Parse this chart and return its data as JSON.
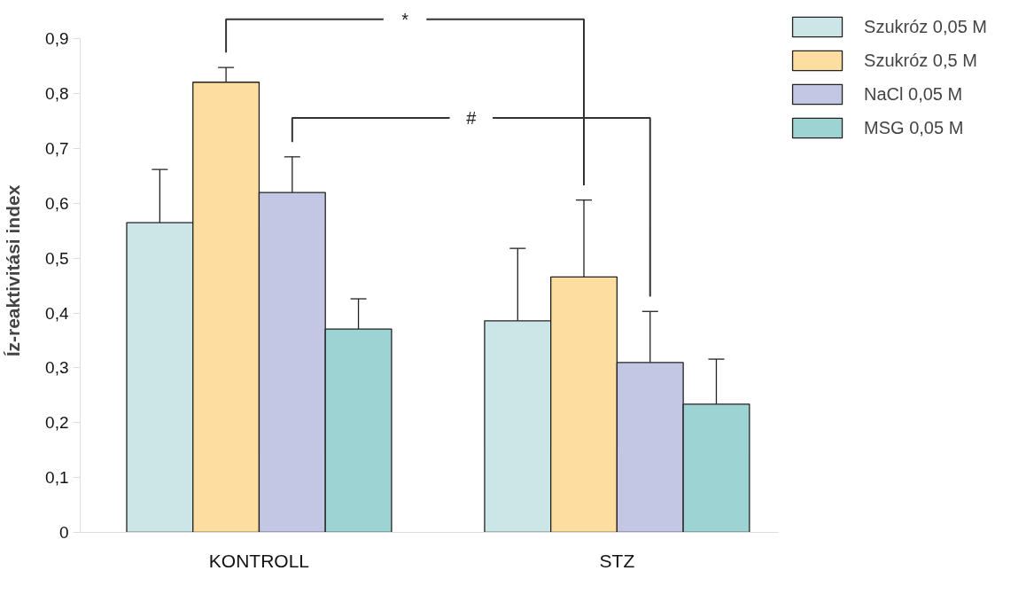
{
  "chart_data": {
    "type": "bar",
    "ylabel": "Íz-reaktivitási index",
    "categories": [
      "KONTROLL",
      "STZ"
    ],
    "series": [
      {
        "name": "Szukróz 0,05 M",
        "color": "#cce5e6",
        "values": [
          0.565,
          0.386
        ],
        "errors": [
          [
            0.565,
            0.662
          ],
          [
            0.386,
            0.518
          ]
        ]
      },
      {
        "name": "Szukróz 0,5 M",
        "color": "#fddda0",
        "values": [
          0.821,
          0.466
        ],
        "errors": [
          [
            0.821,
            0.848
          ],
          [
            0.466,
            0.606
          ]
        ]
      },
      {
        "name": "NaCl 0,05 M",
        "color": "#c4c7e4",
        "values": [
          0.62,
          0.31
        ],
        "errors": [
          [
            0.62,
            0.685
          ],
          [
            0.31,
            0.403
          ]
        ]
      },
      {
        "name": "MSG 0,05 M",
        "color": "#9dd3d3",
        "values": [
          0.371,
          0.234
        ],
        "errors": [
          [
            0.371,
            0.426
          ],
          [
            0.234,
            0.316
          ]
        ]
      }
    ],
    "annotations": [
      "*",
      "#"
    ],
    "ylim": [
      0,
      0.9
    ],
    "yticks": [
      {
        "value": 0,
        "label": "0"
      },
      {
        "value": 0.1,
        "label": "0,1"
      },
      {
        "value": 0.2,
        "label": "0,2"
      },
      {
        "value": 0.3,
        "label": "0,3"
      },
      {
        "value": 0.4,
        "label": "0,4"
      },
      {
        "value": 0.5,
        "label": "0,5"
      },
      {
        "value": 0.6,
        "label": "0,6"
      },
      {
        "value": 0.7,
        "label": "0,7"
      },
      {
        "value": 0.8,
        "label": "0,8"
      },
      {
        "value": 0.9,
        "label": "0,9"
      }
    ],
    "grid": false,
    "legend": "top right"
  }
}
